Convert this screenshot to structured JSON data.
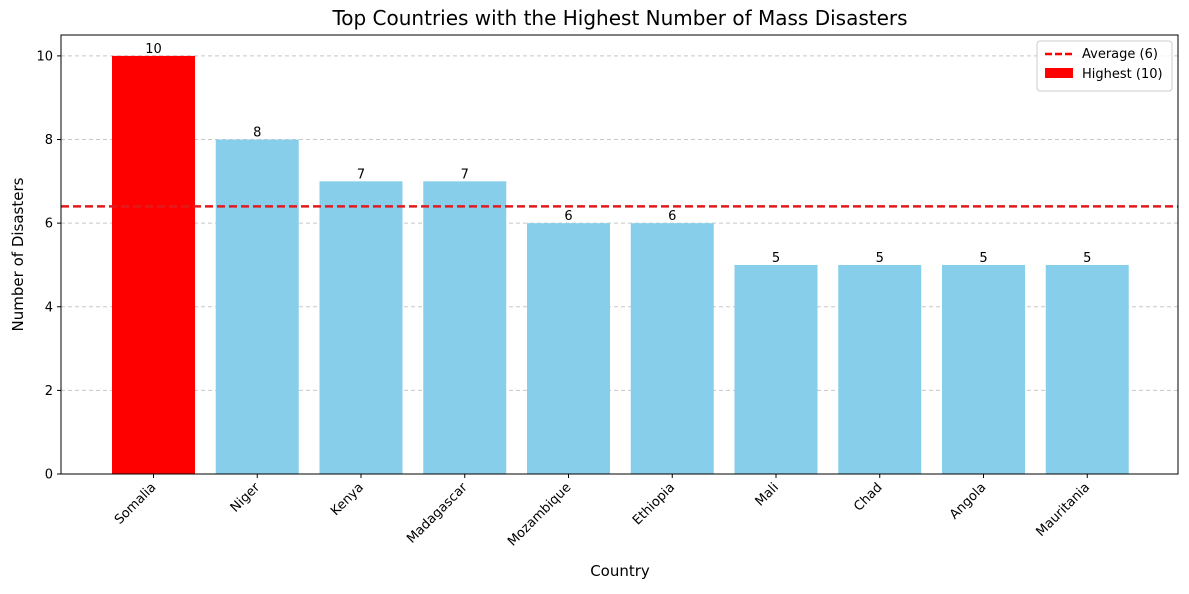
{
  "chart_data": {
    "type": "bar",
    "title": "Top Countries with the Highest Number of Mass Disasters",
    "xlabel": "Country",
    "ylabel": "Number of Disasters",
    "categories": [
      "Somalia",
      "Niger",
      "Kenya",
      "Madagascar",
      "Mozambique",
      "Ethiopia",
      "Mali",
      "Chad",
      "Angola",
      "Mauritania"
    ],
    "values": [
      10,
      8,
      7,
      7,
      6,
      6,
      5,
      5,
      5,
      5
    ],
    "data_labels": [
      "10",
      "8",
      "7",
      "7",
      "6",
      "6",
      "5",
      "5",
      "5",
      "5"
    ],
    "highlight_index": 0,
    "ylim": [
      0,
      10.5
    ],
    "yticks": [
      0,
      2,
      4,
      6,
      8,
      10
    ],
    "average_line_value": 6.4,
    "grid": {
      "y": true,
      "style": "dashed"
    },
    "legend": {
      "placement": "top-right",
      "entries": [
        {
          "label": "Average (6)",
          "kind": "dashed-line",
          "color": "#ff0000"
        },
        {
          "label": "Highest (10)",
          "kind": "bar",
          "color": "#ff0000"
        }
      ]
    },
    "colors": {
      "bar": "#87ceeb",
      "highlight": "#ff0000",
      "average_line": "#e31a1c",
      "grid": "#c8c8c8"
    }
  }
}
